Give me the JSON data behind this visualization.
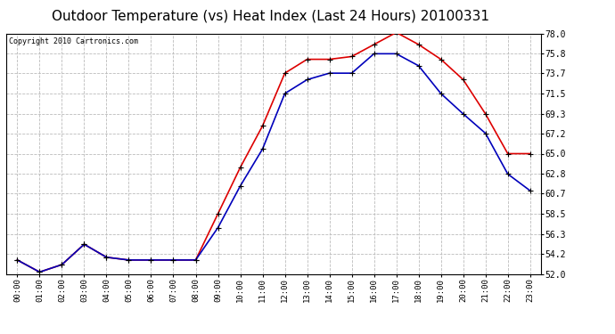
{
  "title": "Outdoor Temperature (vs) Heat Index (Last 24 Hours) 20100331",
  "copyright": "Copyright 2010 Cartronics.com",
  "x_labels": [
    "00:00",
    "01:00",
    "02:00",
    "03:00",
    "04:00",
    "05:00",
    "06:00",
    "07:00",
    "08:00",
    "09:00",
    "10:00",
    "11:00",
    "12:00",
    "13:00",
    "14:00",
    "15:00",
    "16:00",
    "17:00",
    "18:00",
    "19:00",
    "20:00",
    "21:00",
    "22:00",
    "23:00"
  ],
  "temp_red": [
    53.5,
    52.2,
    53.0,
    55.2,
    53.8,
    53.5,
    53.5,
    53.5,
    53.5,
    58.5,
    63.5,
    68.0,
    73.7,
    75.2,
    75.2,
    75.5,
    76.8,
    78.1,
    76.8,
    75.2,
    73.0,
    69.3,
    65.0,
    65.0
  ],
  "heat_blue": [
    53.5,
    52.2,
    53.0,
    55.2,
    53.8,
    53.5,
    53.5,
    53.5,
    53.5,
    57.0,
    61.5,
    65.5,
    71.5,
    73.0,
    73.7,
    73.7,
    75.8,
    75.8,
    74.5,
    71.5,
    69.3,
    67.2,
    62.8,
    61.0
  ],
  "ylim": [
    52.0,
    78.0
  ],
  "yticks": [
    52.0,
    54.2,
    56.3,
    58.5,
    60.7,
    62.8,
    65.0,
    67.2,
    69.3,
    71.5,
    73.7,
    75.8,
    78.0
  ],
  "red_color": "#dd0000",
  "blue_color": "#0000bb",
  "bg_color": "#ffffff",
  "grid_color": "#bbbbbb",
  "title_fontsize": 11,
  "copyright_fontsize": 6,
  "tick_fontsize": 6.5,
  "ytick_fontsize": 7
}
